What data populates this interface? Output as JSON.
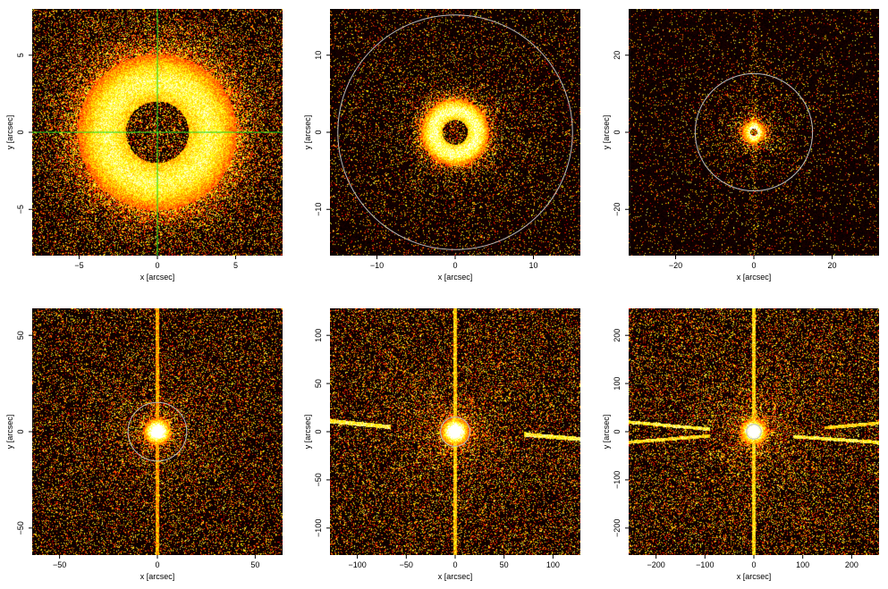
{
  "figure": {
    "panels": [
      {
        "xlabel": "x [arcsec]",
        "ylabel": "y [arcsec]",
        "xlim": [
          -8,
          8
        ],
        "ylim": [
          -8,
          8
        ],
        "xticks": [
          -5,
          0,
          5
        ],
        "yticks": [
          -5,
          0,
          5
        ],
        "xtick_labels": [
          "−5",
          "0",
          "5"
        ],
        "ytick_labels": [
          "−5",
          "0",
          "5"
        ],
        "crosshair": true,
        "crosshair_color": "#22dd22",
        "circle_radius": null,
        "scene": "ring_close"
      },
      {
        "xlabel": "x [arcsec]",
        "ylabel": "y [arcsec]",
        "xlim": [
          -16,
          16
        ],
        "ylim": [
          -16,
          16
        ],
        "xticks": [
          -10,
          0,
          10
        ],
        "yticks": [
          -10,
          0,
          10
        ],
        "xtick_labels": [
          "−10",
          "0",
          "10"
        ],
        "ytick_labels": [
          "−10",
          "0",
          "10"
        ],
        "crosshair": false,
        "circle_radius": 15,
        "circle_color": "#bbbbbb",
        "scene": "ring_mid"
      },
      {
        "xlabel": "x [arcsec]",
        "ylabel": "y [arcsec]",
        "xlim": [
          -32,
          32
        ],
        "ylim": [
          -32,
          32
        ],
        "xticks": [
          -20,
          0,
          20
        ],
        "yticks": [
          -20,
          0,
          20
        ],
        "xtick_labels": [
          "−20",
          "0",
          "20"
        ],
        "ytick_labels": [
          "−20",
          "0",
          "20"
        ],
        "crosshair": false,
        "circle_radius": 15,
        "circle_color": "#bbbbbb",
        "scene": "core_wide"
      },
      {
        "xlabel": "x [arcsec]",
        "ylabel": "y [arcsec]",
        "xlim": [
          -64,
          64
        ],
        "ylim": [
          -64,
          64
        ],
        "xticks": [
          -50,
          0,
          50
        ],
        "yticks": [
          -50,
          0,
          50
        ],
        "xtick_labels": [
          "−50",
          "0",
          "50"
        ],
        "ytick_labels": [
          "−50",
          "0",
          "50"
        ],
        "crosshair": false,
        "circle_radius": 15,
        "circle_color": "#bbbbbb",
        "scene": "spike_vertical"
      },
      {
        "xlabel": "x [arcsec]",
        "ylabel": "y [arcsec]",
        "xlim": [
          -128,
          128
        ],
        "ylim": [
          -128,
          128
        ],
        "xticks": [
          -100,
          -50,
          0,
          50,
          100
        ],
        "yticks": [
          -100,
          -50,
          0,
          50,
          100
        ],
        "xtick_labels": [
          "−100",
          "−50",
          "0",
          "50",
          "100"
        ],
        "ytick_labels": [
          "−100",
          "−50",
          "0",
          "50",
          "100"
        ],
        "crosshair": false,
        "circle_radius": 15,
        "circle_color": "#bbbbbb",
        "scene": "streaks_one"
      },
      {
        "xlabel": "x [arcsec]",
        "ylabel": "y [arcsec]",
        "xlim": [
          -256,
          256
        ],
        "ylim": [
          -256,
          256
        ],
        "xticks": [
          -200,
          -100,
          0,
          100,
          200
        ],
        "yticks": [
          -200,
          -100,
          0,
          100,
          200
        ],
        "xtick_labels": [
          "−200",
          "−100",
          "0",
          "100",
          "200"
        ],
        "ytick_labels": [
          "−200",
          "−100",
          "0",
          "100",
          "200"
        ],
        "crosshair": false,
        "circle_radius": 15,
        "circle_color": "#bbbbbb",
        "scene": "streaks_two"
      }
    ]
  }
}
